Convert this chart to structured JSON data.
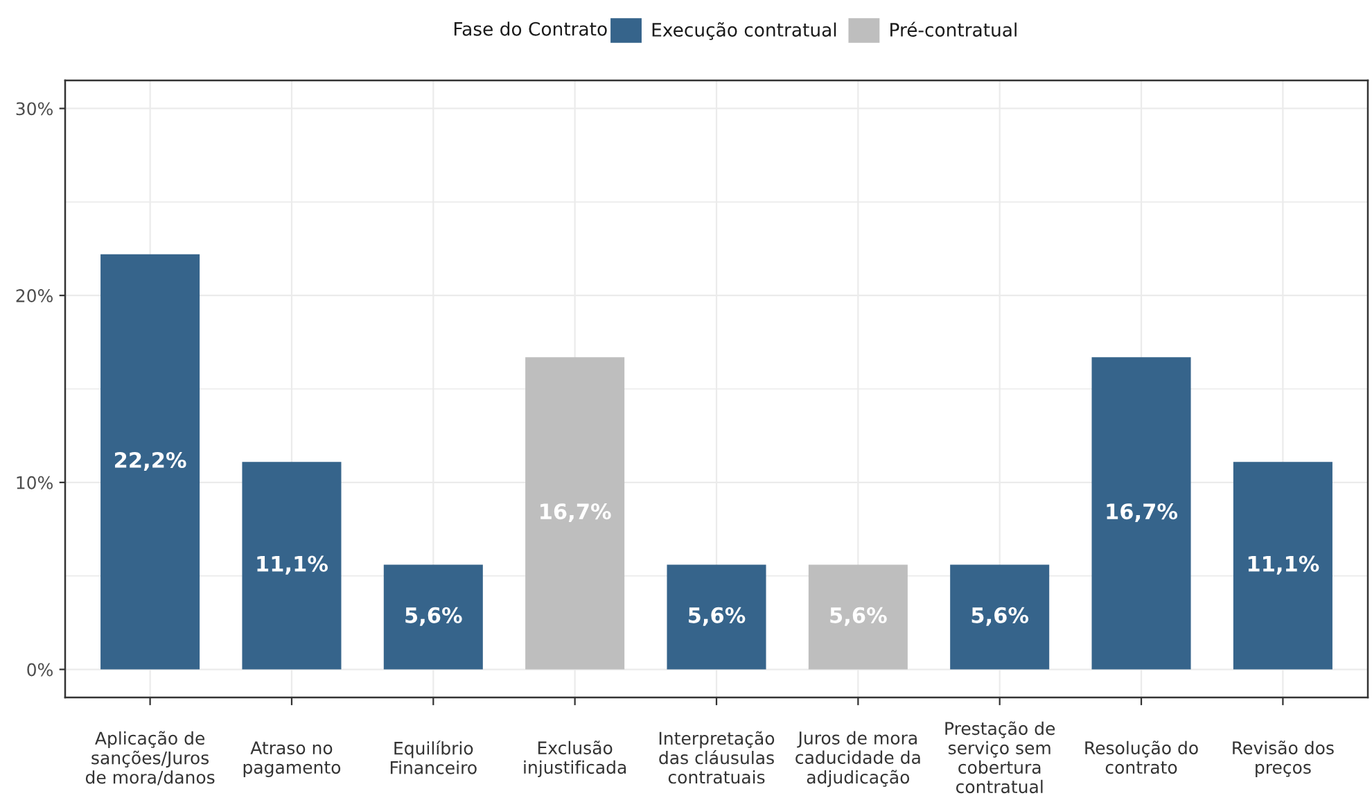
{
  "chart_data": {
    "type": "bar",
    "legend_title": "Fase do Contrato",
    "categories": [
      "Aplicação de\nsanções/Juros\nde mora/danos",
      "Atraso no\npagamento",
      "Equilíbrio\nFinanceiro",
      "Exclusão\ninjustificada",
      "Interpretação\ndas cláusulas\ncontratuais",
      "Juros de mora\ncaducidade da\nadjudicação",
      "Prestação de\nserviço sem\ncobertura\ncontratual",
      "Resolução do\ncontrato",
      "Revisão dos\npreços"
    ],
    "series": [
      {
        "name": "Execução contratual",
        "color": "#36648b",
        "values": [
          22.2,
          11.1,
          5.6,
          null,
          5.6,
          null,
          5.6,
          16.7,
          11.1
        ],
        "value_labels": [
          "22,2%",
          "11,1%",
          "5,6%",
          null,
          "5,6%",
          null,
          "5,6%",
          "16,7%",
          "11,1%"
        ]
      },
      {
        "name": "Pré-contratual",
        "color": "#bebebe",
        "values": [
          null,
          null,
          null,
          16.7,
          null,
          5.6,
          null,
          null,
          null
        ],
        "value_labels": [
          null,
          null,
          null,
          "16,7%",
          null,
          "5,6%",
          null,
          null,
          null
        ]
      }
    ],
    "stacked": true,
    "ylim": [
      -1.5,
      31.5
    ],
    "yticks": [
      {
        "value": 0,
        "label": "0%"
      },
      {
        "value": 5,
        "label": null
      },
      {
        "value": 10,
        "label": "10%"
      },
      {
        "value": 15,
        "label": null
      },
      {
        "value": 20,
        "label": "20%"
      },
      {
        "value": 25,
        "label": null
      },
      {
        "value": 30,
        "label": "30%"
      }
    ],
    "grid": true,
    "legend": "top"
  }
}
